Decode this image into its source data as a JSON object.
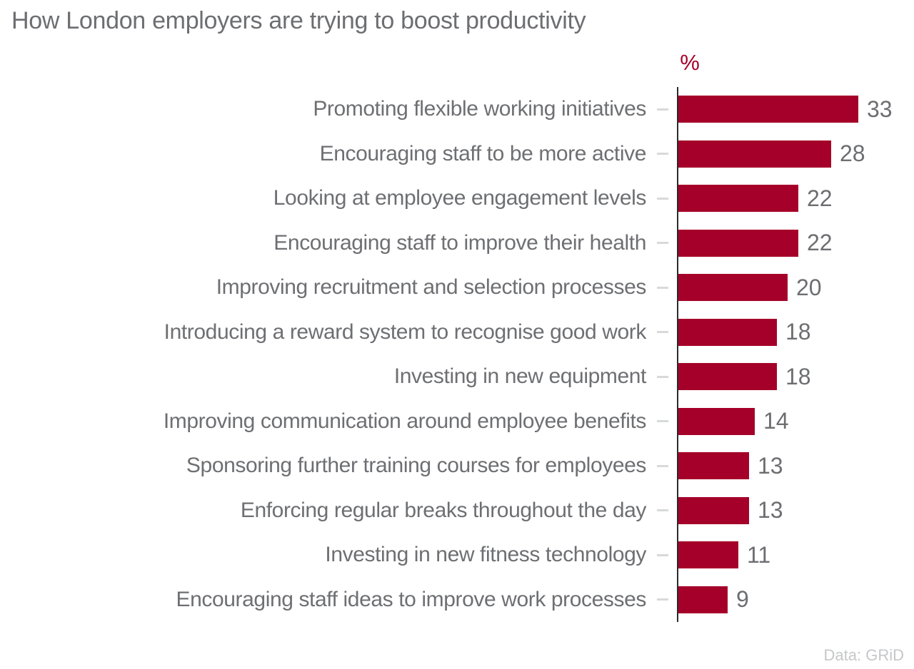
{
  "title": "How London employers are trying to boost productivity",
  "source": "Data: GRiD",
  "chart_data": {
    "type": "bar",
    "orientation": "horizontal",
    "title": "How London employers are trying to boost productivity",
    "unit_label": "%",
    "categories": [
      "Promoting flexible working initiatives",
      "Encouraging staff to be more active",
      "Looking at employee engagement levels",
      "Encouraging staff to improve their health",
      "Improving recruitment and selection processes",
      "Introducing a reward system to recognise good work",
      "Investing in new equipment",
      "Improving communication around employee benefits",
      "Sponsoring further training courses for employees",
      "Enforcing regular breaks throughout the day",
      "Investing in new fitness technology",
      "Encouraging staff ideas to improve work processes"
    ],
    "values": [
      33,
      28,
      22,
      22,
      20,
      18,
      18,
      14,
      13,
      13,
      11,
      9
    ],
    "xlim": [
      0,
      33
    ],
    "grid": false,
    "legend": "none",
    "value_labels_shown": true,
    "colors": {
      "bar": "#a50029",
      "unit_label": "#a50029",
      "title_text": "#6d6e71",
      "category_text": "#6e6f72",
      "value_text": "#6d6e71",
      "axis_line": "#2b2b2b",
      "tick_mark": "#d8d9db",
      "source_text": "#c6c7c9",
      "background": "#ffffff"
    }
  }
}
